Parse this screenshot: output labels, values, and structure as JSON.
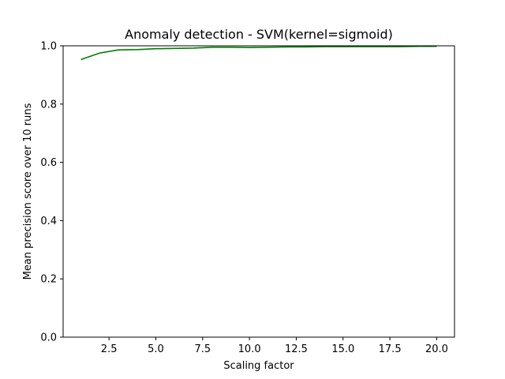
{
  "chart_data": {
    "type": "line",
    "title": "Anomaly detection - SVM(kernel=sigmoid)",
    "xlabel": "Scaling factor",
    "ylabel": "Mean precision score over 10 runs",
    "xlim": [
      0.05,
      20.95
    ],
    "ylim": [
      0,
      1
    ],
    "xticks": [
      2.5,
      5.0,
      7.5,
      10.0,
      12.5,
      15.0,
      17.5,
      20.0
    ],
    "xtick_labels": [
      "2.5",
      "5.0",
      "7.5",
      "10.0",
      "12.5",
      "15.0",
      "17.5",
      "20.0"
    ],
    "yticks": [
      0.0,
      0.2,
      0.4,
      0.6,
      0.8,
      1.0
    ],
    "ytick_labels": [
      "0.0",
      "0.2",
      "0.4",
      "0.6",
      "0.8",
      "1.0"
    ],
    "grid": false,
    "series": [
      {
        "color": "#008000",
        "x": [
          1,
          2,
          3,
          4,
          5,
          6,
          7,
          8,
          9,
          10,
          11,
          12,
          13,
          14,
          15,
          16,
          17,
          18,
          19,
          20
        ],
        "y": [
          0.953,
          0.975,
          0.986,
          0.987,
          0.99,
          0.991,
          0.992,
          0.995,
          0.995,
          0.994,
          0.995,
          0.996,
          0.996,
          0.997,
          0.997,
          0.997,
          0.997,
          0.997,
          0.998,
          0.998
        ]
      }
    ]
  }
}
